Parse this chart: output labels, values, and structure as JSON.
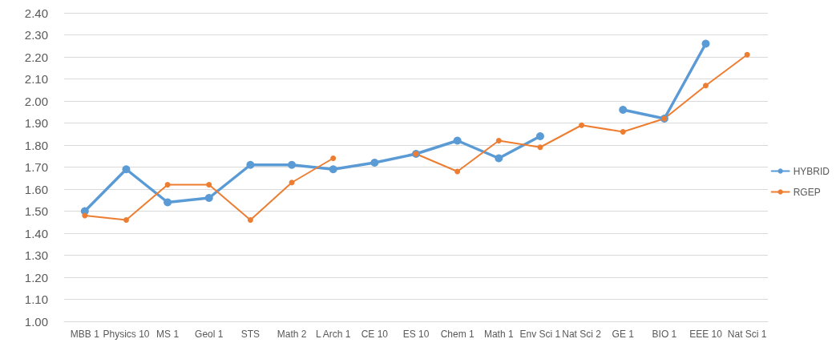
{
  "chart_data": {
    "type": "line",
    "categories": [
      "MBB 1",
      "Physics 10",
      "MS 1",
      "Geol 1",
      "STS",
      "Math 2",
      "L Arch 1",
      "CE 10",
      "ES 10",
      "Chem 1",
      "Math 1",
      "Env Sci 1",
      "Nat Sci 2",
      "GE 1",
      "BIO 1",
      "EEE 10",
      "Nat Sci 1"
    ],
    "series": [
      {
        "name": "HYBRID",
        "color": "#5b9bd5",
        "values": [
          1.5,
          1.69,
          1.54,
          1.56,
          1.71,
          1.71,
          1.69,
          1.72,
          1.76,
          1.82,
          1.74,
          1.84,
          null,
          1.96,
          1.92,
          2.26,
          null
        ]
      },
      {
        "name": "RGEP",
        "color": "#ed7d31",
        "values": [
          1.48,
          1.46,
          1.62,
          1.62,
          1.46,
          1.63,
          1.74,
          null,
          1.76,
          1.68,
          1.82,
          1.79,
          1.89,
          1.86,
          1.92,
          2.07,
          2.21
        ]
      }
    ],
    "ylim": [
      1.0,
      2.4
    ],
    "yticks": [
      {
        "value": 1.0,
        "label": "1.00"
      },
      {
        "value": 1.1,
        "label": "1.10"
      },
      {
        "value": 1.2,
        "label": "1.20"
      },
      {
        "value": 1.3,
        "label": "1.30"
      },
      {
        "value": 1.4,
        "label": "1.40"
      },
      {
        "value": 1.5,
        "label": "1.50"
      },
      {
        "value": 1.6,
        "label": "1.60"
      },
      {
        "value": 1.7,
        "label": "1.70"
      },
      {
        "value": 1.8,
        "label": "1.80"
      },
      {
        "value": 1.9,
        "label": "1.90"
      },
      {
        "value": 2.0,
        "label": "2.00"
      },
      {
        "value": 2.1,
        "label": "2.10"
      },
      {
        "value": 2.2,
        "label": "2.20"
      },
      {
        "value": 2.3,
        "label": "2.30"
      },
      {
        "value": 2.4,
        "label": "2.40"
      }
    ],
    "grid": "y",
    "legend": "right",
    "marker": "circle",
    "line_style": "solid"
  }
}
